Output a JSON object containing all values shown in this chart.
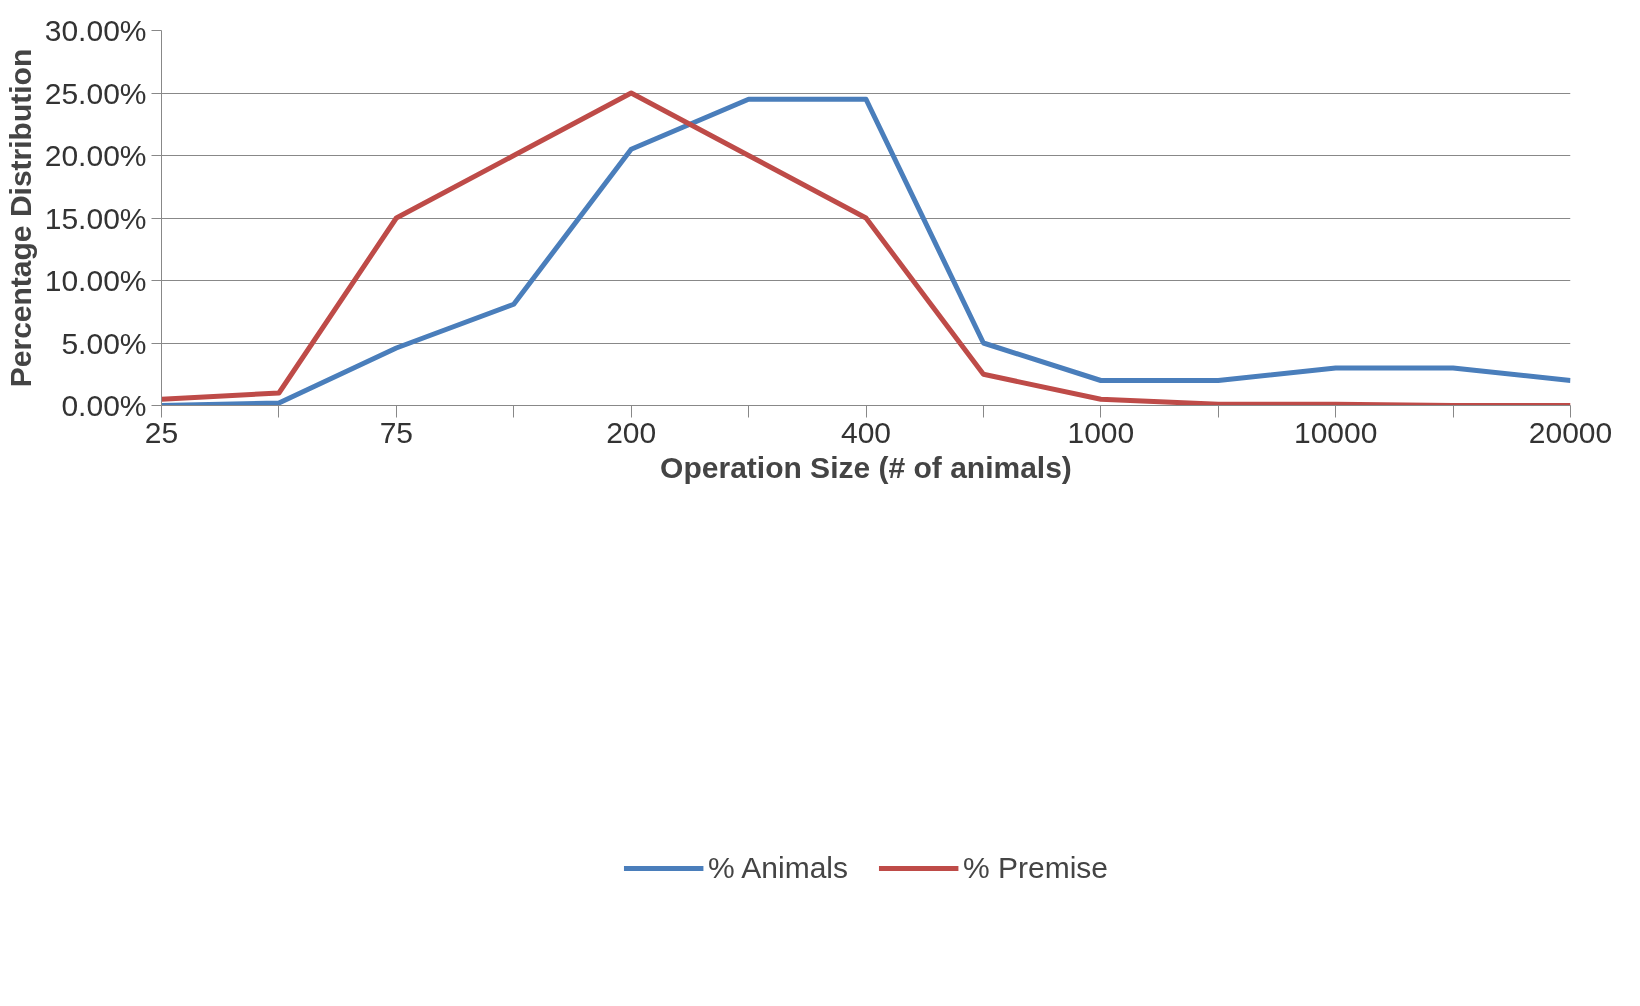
{
  "chart_data": {
    "type": "line",
    "xlabel": "Operation Size (# of animals)",
    "ylabel": "Percentage Distribution",
    "categories": [
      "25",
      null,
      "75",
      null,
      "200",
      null,
      "400",
      null,
      "1000",
      null,
      "10000",
      null,
      "20000"
    ],
    "series": [
      {
        "name": "% Animals",
        "color": "#4a7ebb",
        "values": [
          0.0,
          0.2,
          4.6,
          8.1,
          20.5,
          24.5,
          24.5,
          5.0,
          2.0,
          2.0,
          3.0,
          3.0,
          2.0
        ]
      },
      {
        "name": "% Premise",
        "color": "#be4b48",
        "values": [
          0.5,
          1.0,
          15.0,
          20.0,
          25.0,
          20.0,
          15.0,
          2.5,
          0.5,
          0.1,
          0.1,
          0.0,
          0.0
        ]
      }
    ],
    "ylim": [
      0,
      30
    ],
    "yticks": [
      {
        "value": 0,
        "label": "0.00%"
      },
      {
        "value": 5,
        "label": "5.00%"
      },
      {
        "value": 10,
        "label": "10.00%"
      },
      {
        "value": 15,
        "label": "15.00%"
      },
      {
        "value": 20,
        "label": "20.00%"
      },
      {
        "value": 25,
        "label": "25.00%"
      },
      {
        "value": 30,
        "label": "30.00%"
      }
    ],
    "grid": "y",
    "legend": "bottom",
    "marker": "none",
    "line_style": "solid"
  }
}
